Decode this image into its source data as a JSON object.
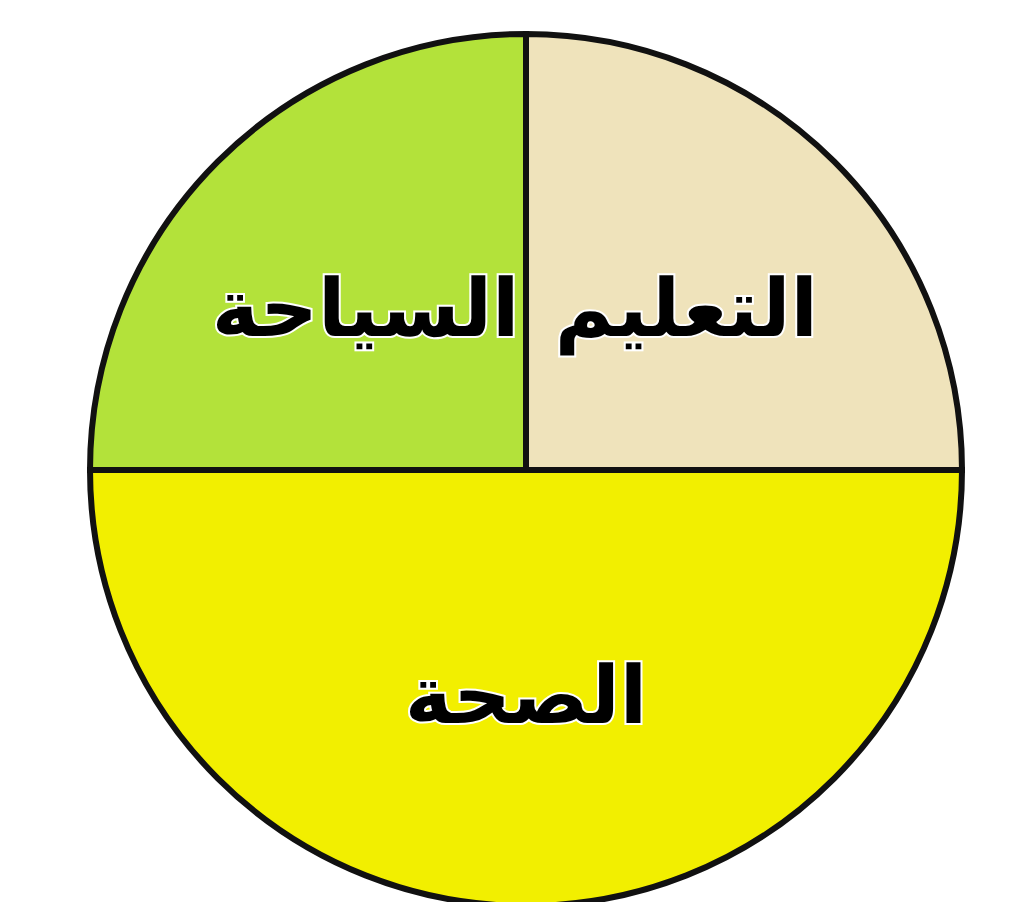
{
  "chart_data": {
    "type": "pie",
    "categories": [
      "التعليم",
      "الصحة",
      "السياحة"
    ],
    "values": [
      25,
      50,
      25
    ],
    "colors": [
      "#efe3bb",
      "#f2ef00",
      "#b3e23a"
    ]
  }
}
